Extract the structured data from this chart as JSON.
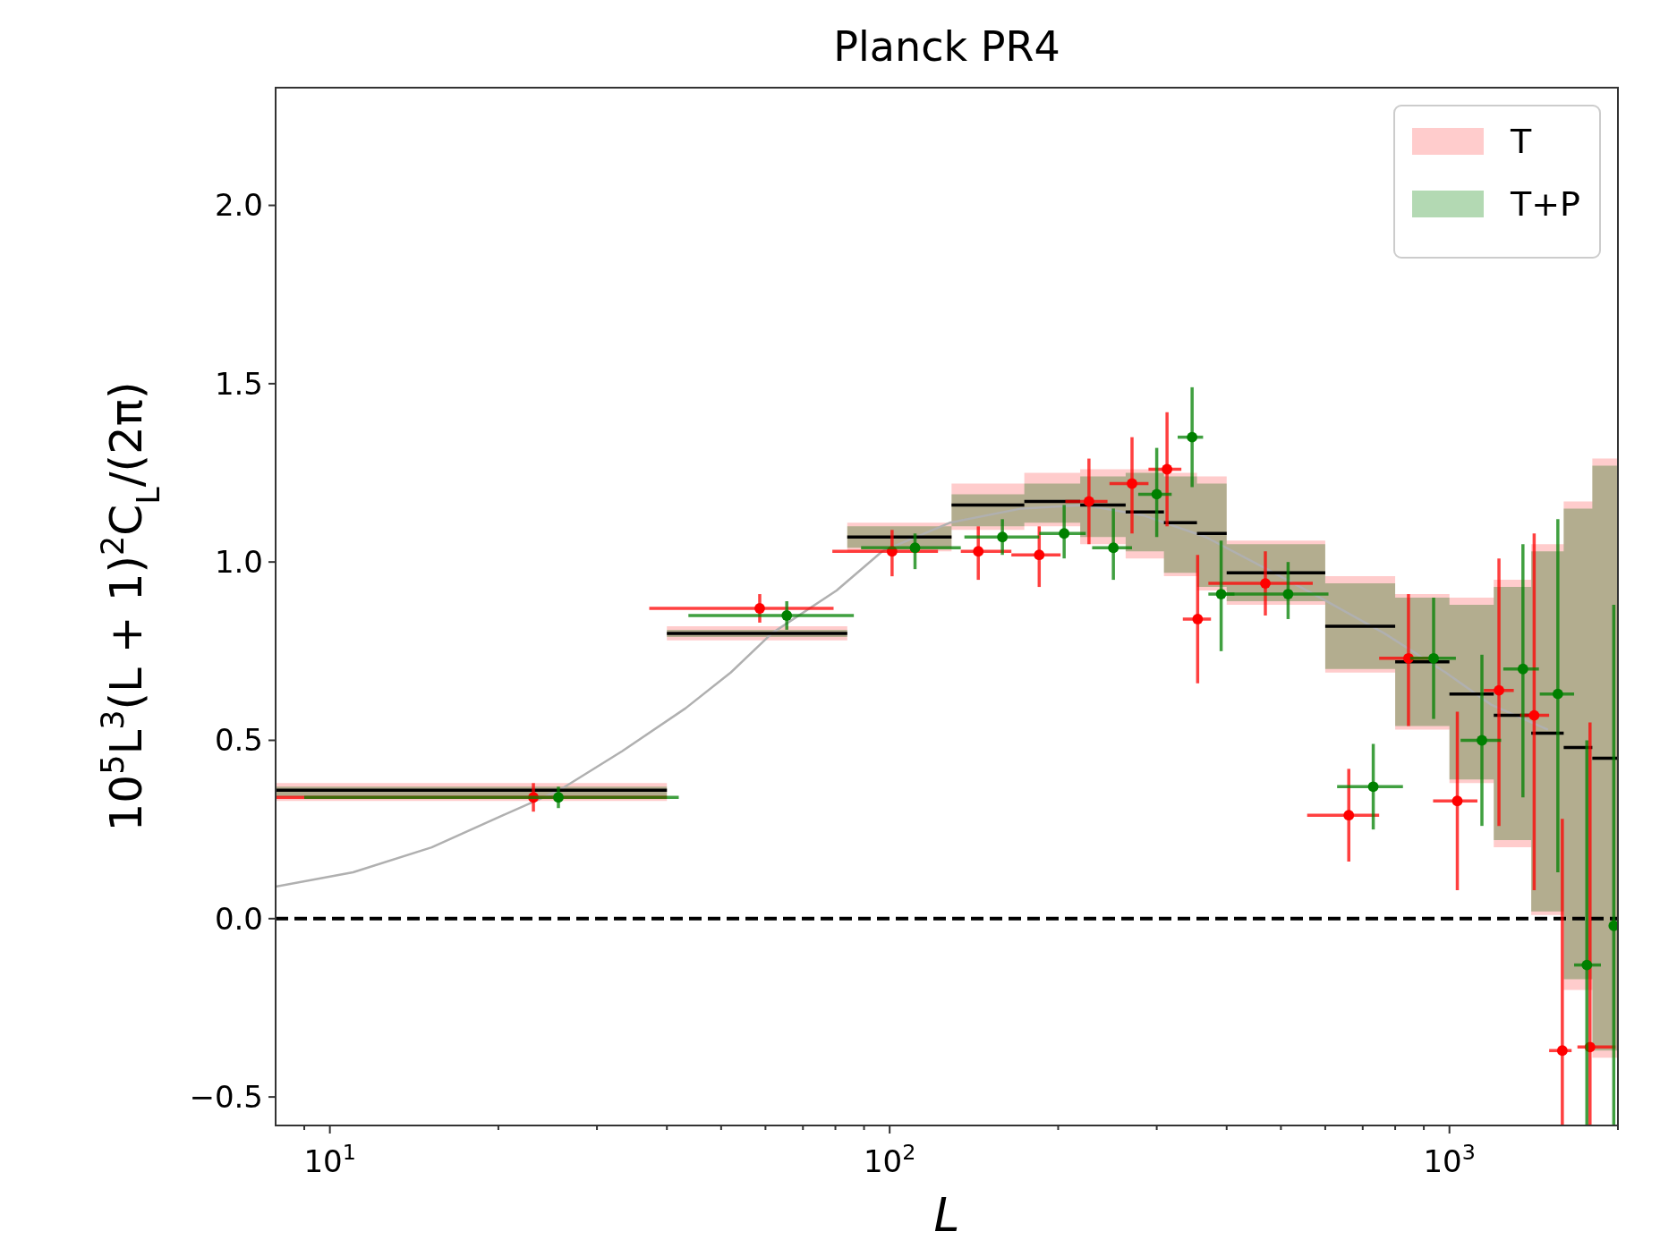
{
  "chart_data": {
    "type": "scatter",
    "title": "Planck PR4",
    "xlabel": "L",
    "ylabel": "10$^{5}$L$^{3}$(L + 1)$^{2}$C$_{L}$/(2π)",
    "log": "x",
    "xlim": [
      8,
      2000
    ],
    "ylim": [
      -0.58,
      2.33
    ],
    "xticks": [
      {
        "value": 9,
        "label": null
      },
      {
        "value": 10,
        "label": "10$^{1}$"
      },
      {
        "value": 20,
        "label": null
      },
      {
        "value": 30,
        "label": null
      },
      {
        "value": 40,
        "label": null
      },
      {
        "value": 50,
        "label": null
      },
      {
        "value": 60,
        "label": null
      },
      {
        "value": 70,
        "label": null
      },
      {
        "value": 80,
        "label": null
      },
      {
        "value": 90,
        "label": null
      },
      {
        "value": 100,
        "label": "10$^{2}$"
      },
      {
        "value": 200,
        "label": null
      },
      {
        "value": 300,
        "label": null
      },
      {
        "value": 400,
        "label": null
      },
      {
        "value": 500,
        "label": null
      },
      {
        "value": 600,
        "label": null
      },
      {
        "value": 700,
        "label": null
      },
      {
        "value": 800,
        "label": null
      },
      {
        "value": 900,
        "label": null
      },
      {
        "value": 1000,
        "label": "10$^{3}$"
      },
      {
        "value": 2000,
        "label": null
      }
    ],
    "yticks": [
      {
        "value": -0.5,
        "label": "−0.5"
      },
      {
        "value": 0,
        "label": "0.0"
      },
      {
        "value": 0.5,
        "label": "0.5"
      },
      {
        "value": 1,
        "label": "1.0"
      },
      {
        "value": 1.5,
        "label": "1.5"
      },
      {
        "value": 2,
        "label": "2.0"
      }
    ],
    "grid": false,
    "legend": "top right",
    "ref_lines": [
      {
        "axis": "y",
        "value": 0,
        "label": null,
        "color": "#000000",
        "line_style": "dashed"
      }
    ],
    "series": [
      {
        "name": "T",
        "type": "step",
        "color": "#ffcccc",
        "x": [
          8,
          40,
          84,
          129,
          174,
          219,
          264,
          309,
          354,
          400,
          600,
          800,
          1000,
          1200,
          1400,
          1600,
          1800,
          2000
        ],
        "values": [
          null,
          null,
          null,
          null,
          null,
          null,
          null,
          null,
          null,
          null,
          null,
          null,
          null,
          null,
          null,
          null,
          null,
          null
        ],
        "lower": [
          0.33,
          0.78,
          1.03,
          1.09,
          1.1,
          1.05,
          1.01,
          0.96,
          0.92,
          0.88,
          0.69,
          0.53,
          0.38,
          0.2,
          0.01,
          -0.2,
          -0.39,
          -0.39
        ],
        "upper": [
          0.38,
          0.82,
          1.11,
          1.22,
          1.25,
          1.26,
          1.26,
          1.25,
          1.24,
          1.06,
          0.96,
          0.91,
          0.9,
          0.95,
          1.05,
          1.17,
          1.29,
          1.29
        ]
      },
      {
        "name": "T+P",
        "type": "step",
        "color": "#b3d9b3",
        "x": [
          8,
          40,
          84,
          129,
          174,
          219,
          264,
          309,
          354,
          400,
          600,
          800,
          1000,
          1200,
          1400,
          1600,
          1800,
          2000
        ],
        "values": [
          null,
          null,
          null,
          null,
          null,
          null,
          null,
          null,
          null,
          null,
          null,
          null,
          null,
          null,
          null,
          null,
          null,
          null
        ],
        "lower": [
          0.34,
          0.79,
          1.04,
          1.1,
          1.11,
          1.07,
          1.03,
          0.97,
          0.93,
          0.89,
          0.7,
          0.54,
          0.39,
          0.22,
          0.02,
          -0.17,
          -0.37,
          -0.37
        ],
        "upper": [
          0.37,
          0.81,
          1.1,
          1.19,
          1.22,
          1.24,
          1.25,
          1.24,
          1.22,
          1.05,
          0.94,
          0.9,
          0.88,
          0.93,
          1.03,
          1.15,
          1.27,
          1.27
        ]
      },
      {
        "type": "line",
        "color": "#b0b0b0",
        "x": [
          8,
          11,
          15.2,
          20.4,
          25.7,
          33.3,
          43.2,
          52,
          61.6,
          80.4,
          97,
          128,
          172,
          222,
          285,
          367,
          472,
          588,
          765,
          985,
          1187,
          1500
        ],
        "values": [
          0.09,
          0.13,
          0.2,
          0.29,
          0.36,
          0.47,
          0.59,
          0.69,
          0.8,
          0.92,
          1.03,
          1.11,
          1.15,
          1.16,
          1.13,
          1.07,
          0.98,
          0.9,
          0.8,
          0.69,
          0.6,
          0.53
        ]
      },
      {
        "type": "step",
        "color": "#000000",
        "x": [
          8,
          40,
          84,
          129,
          174,
          219,
          264,
          309,
          354,
          400,
          600,
          800,
          1000,
          1200,
          1400,
          1600,
          1800,
          2000
        ],
        "values": [
          0.36,
          0.8,
          1.07,
          1.16,
          1.17,
          1.16,
          1.14,
          1.11,
          1.08,
          0.97,
          0.82,
          0.72,
          0.63,
          0.57,
          0.52,
          0.48,
          0.45,
          0.45
        ]
      },
      {
        "color": "#ff0000",
        "marker": "circle",
        "x": [
          23.1,
          58.6,
          101,
          144,
          185,
          227,
          271,
          313,
          355,
          469,
          661,
          845,
          1033,
          1226,
          1417,
          1591,
          1783
        ],
        "values": [
          0.34,
          0.87,
          1.03,
          1.03,
          1.02,
          1.17,
          1.22,
          1.26,
          0.84,
          0.94,
          0.29,
          0.73,
          0.33,
          0.64,
          0.57,
          -0.37,
          -0.36
        ],
        "errors": [
          [
            0.3,
            0.38
          ],
          [
            0.83,
            0.91
          ],
          [
            0.96,
            1.09
          ],
          [
            0.95,
            1.1
          ],
          [
            0.93,
            1.1
          ],
          [
            1.05,
            1.29
          ],
          [
            1.08,
            1.35
          ],
          [
            1.1,
            1.42
          ],
          [
            0.66,
            1.02
          ],
          [
            0.85,
            1.03
          ],
          [
            0.16,
            0.42
          ],
          [
            0.54,
            0.91
          ],
          [
            0.08,
            0.58
          ],
          [
            0.26,
            1.01
          ],
          [
            0.08,
            1.08
          ],
          [
            -0.58,
            0.28
          ],
          [
            -0.58,
            0.55
          ]
        ],
        "xerrors": [
          [
            8,
            40
          ],
          [
            37.2,
            79.4
          ],
          [
            79,
            122
          ],
          [
            134,
            165
          ],
          [
            165,
            202
          ],
          [
            206,
            245
          ],
          [
            247,
            290
          ],
          [
            290,
            332
          ],
          [
            334,
            375
          ],
          [
            371,
            570
          ],
          [
            557,
            749
          ],
          [
            749,
            917
          ],
          [
            935,
            1122
          ],
          [
            1152,
            1303
          ],
          [
            1338,
            1507
          ],
          [
            1507,
            1653
          ],
          [
            1693,
            1980
          ]
        ]
      },
      {
        "color": "#008000",
        "marker": "circle",
        "x": [
          25.6,
          65.5,
          111,
          159,
          205,
          251,
          300,
          347,
          391,
          515,
          731,
          937,
          1143,
          1353,
          1562,
          1760,
          1966
        ],
        "values": [
          0.34,
          0.85,
          1.04,
          1.07,
          1.08,
          1.04,
          1.19,
          1.35,
          0.91,
          0.91,
          0.37,
          0.73,
          0.5,
          0.7,
          0.63,
          -0.13,
          -0.02
        ],
        "errors": [
          [
            0.31,
            0.37
          ],
          [
            0.81,
            0.89
          ],
          [
            0.98,
            1.08
          ],
          [
            1.02,
            1.12
          ],
          [
            1.01,
            1.16
          ],
          [
            0.95,
            1.15
          ],
          [
            1.07,
            1.32
          ],
          [
            1.21,
            1.49
          ],
          [
            0.75,
            1.06
          ],
          [
            0.84,
            1.0
          ],
          [
            0.25,
            0.49
          ],
          [
            0.56,
            0.9
          ],
          [
            0.26,
            0.74
          ],
          [
            0.34,
            1.05
          ],
          [
            0.13,
            1.12
          ],
          [
            -0.58,
            0.5
          ],
          [
            -0.58,
            0.88
          ]
        ],
        "xerrors": [
          [
            9,
            42
          ],
          [
            43.7,
            86.3
          ],
          [
            88.9,
            134
          ],
          [
            136,
            185
          ],
          [
            185,
            224
          ],
          [
            230,
            271
          ],
          [
            278,
            319
          ],
          [
            327,
            363
          ],
          [
            371,
            413
          ],
          [
            396,
            608
          ],
          [
            630,
            826
          ],
          [
            851,
            1027
          ],
          [
            1047,
            1237
          ],
          [
            1248,
            1445
          ],
          [
            1450,
            1670
          ],
          [
            1670,
            1865
          ],
          [
            1930,
            2000
          ]
        ]
      }
    ]
  }
}
